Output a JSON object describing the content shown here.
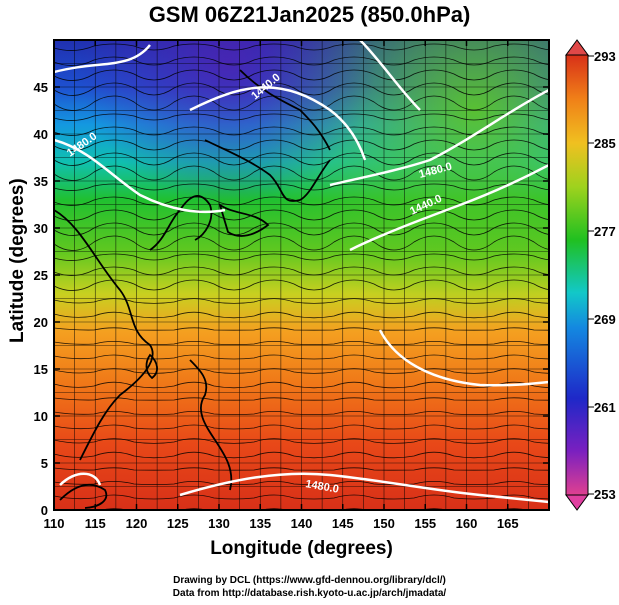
{
  "title": "GSM 06Z21Jan2025 (850.0hPa)",
  "x_axis": {
    "label": "Longitude (degrees)",
    "range": [
      110,
      170
    ],
    "ticks": [
      "110",
      "115",
      "120",
      "125",
      "130",
      "135",
      "140",
      "145",
      "150",
      "155",
      "160",
      "165"
    ]
  },
  "y_axis": {
    "label": "Latitude  (degrees)",
    "range": [
      0,
      50
    ],
    "ticks": [
      "0",
      "5",
      "10",
      "15",
      "20",
      "25",
      "30",
      "35",
      "40",
      "45"
    ]
  },
  "colorbar": {
    "min": 253,
    "max": 293,
    "tick_labels": [
      "293",
      "285",
      "277",
      "269",
      "261",
      "253"
    ],
    "colors": [
      "#e04090",
      "#7a20c0",
      "#1e28c8",
      "#1488e0",
      "#12c8c8",
      "#20c020",
      "#9ed21e",
      "#f0c020",
      "#f08018",
      "#d83018"
    ]
  },
  "contours": {
    "color": "#ffffff",
    "labels": [
      "1480.0",
      "1440.0",
      "1480.0",
      "1440.0",
      "1480.0"
    ]
  },
  "credits": {
    "line1": "Drawing by DCL (https://www.gfd-dennou.org/library/dcl/)",
    "line2": "Data from http://database.rish.kyoto-u.ac.jp/arch/jmadata/"
  }
}
